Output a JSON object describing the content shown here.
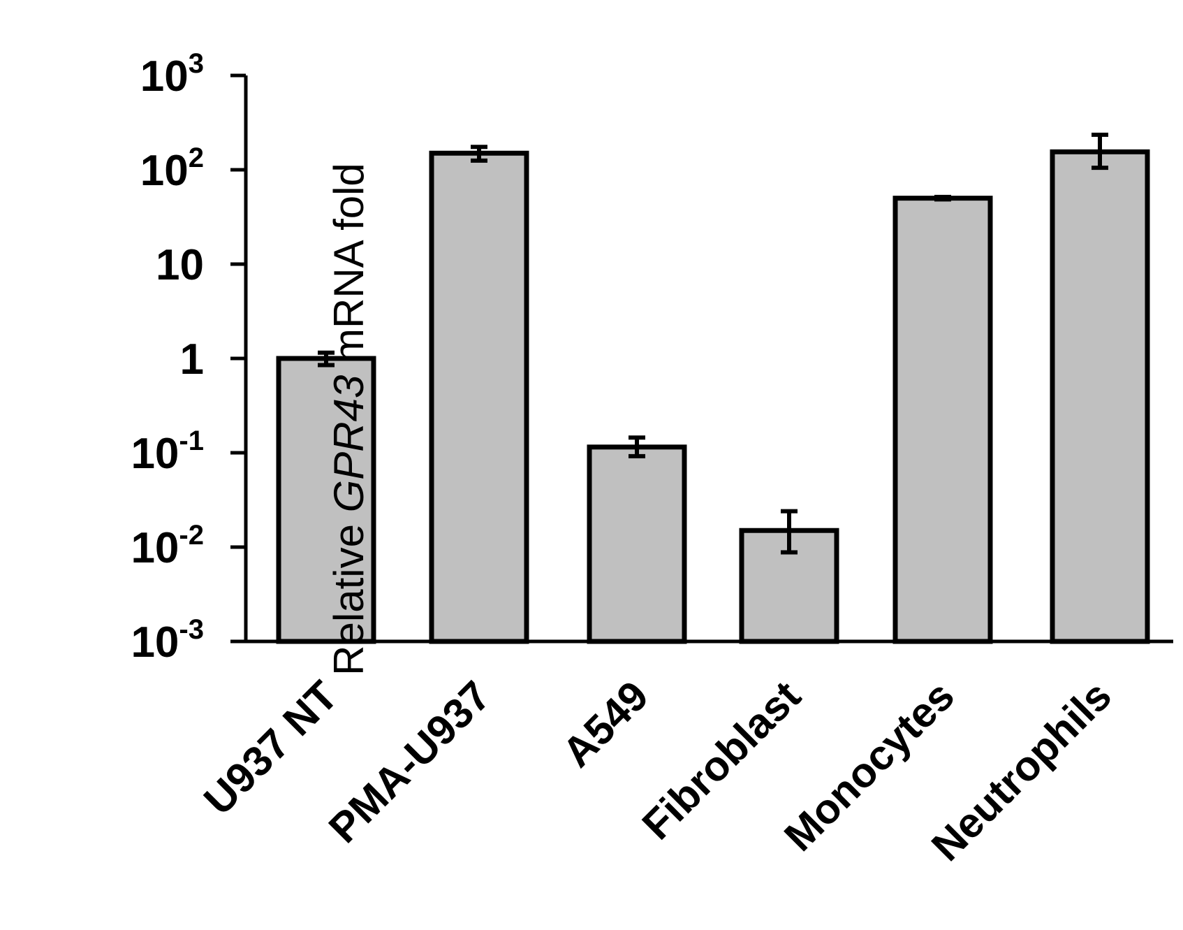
{
  "chart_data": {
    "type": "bar",
    "yscale": "log",
    "ylim": [
      0.001,
      1000
    ],
    "ylabel": {
      "prefix": "Relative ",
      "italic": "GPR43",
      "suffix": " mRNA fold"
    },
    "yticks": [
      {
        "value": 1000,
        "base": "10",
        "exp": "3"
      },
      {
        "value": 100,
        "base": "10",
        "exp": "2"
      },
      {
        "value": 10,
        "base": "10",
        "exp": ""
      },
      {
        "value": 1,
        "base": "1",
        "exp": ""
      },
      {
        "value": 0.1,
        "base": "10",
        "exp": "-1"
      },
      {
        "value": 0.01,
        "base": "10",
        "exp": "-2"
      },
      {
        "value": 0.001,
        "base": "10",
        "exp": "-3"
      }
    ],
    "categories": [
      "U937 NT",
      "PMA-U937",
      "A549",
      "Fibroblast",
      "Monocytes",
      "Neutrophils"
    ],
    "values": [
      1.0,
      150,
      0.115,
      0.015,
      50,
      155
    ],
    "error_low": [
      0.85,
      125,
      0.092,
      0.0088,
      48.5,
      105
    ],
    "error_high": [
      1.15,
      175,
      0.145,
      0.024,
      51.5,
      235
    ],
    "bar_color": "#c0c0c0",
    "edge_color": "#000000",
    "grid": false
  }
}
